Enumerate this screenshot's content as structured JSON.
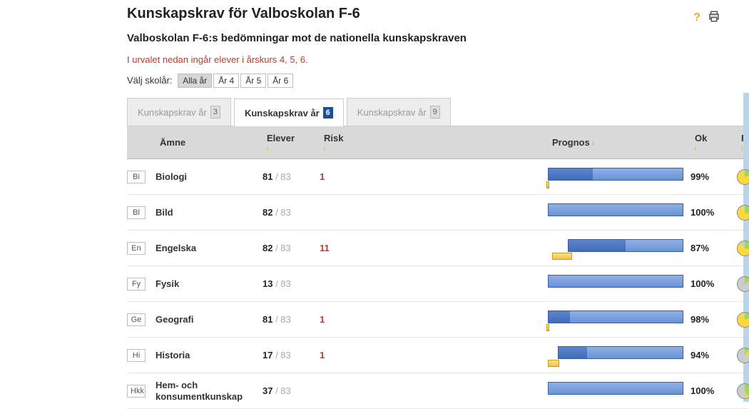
{
  "header": {
    "title": "Kunskapskrav för Valboskolan F-6",
    "subtitle": "Valboskolan F-6:s bedömningar mot de nationella kunskapskraven",
    "filter_text": "I urvalet nedan ingår elever i årskurs 4, 5, 6."
  },
  "year_select": {
    "label": "Välj skolår:",
    "options": [
      "Alla år",
      "År 4",
      "År 5",
      "År 6"
    ],
    "active_index": 0
  },
  "tabs": [
    {
      "label": "Kunskapskrav år",
      "num": "3",
      "active": false
    },
    {
      "label": "Kunskapskrav år",
      "num": "6",
      "active": true
    },
    {
      "label": "Kunskapskrav år",
      "num": "9",
      "active": false
    }
  ],
  "columns": {
    "amne": "Ämne",
    "elever": "Elever",
    "risk": "Risk",
    "prognos": "Prognos",
    "ok": "Ok",
    "farskhet": "Färskhet"
  },
  "colors": {
    "bar_light": "#8fb0e6",
    "bar_dark": "#3f6bb8",
    "risk_bar": "#f0c24a",
    "pie_green": "#a4d65e",
    "pie_yellow": "#ffd83d",
    "pie_grey": "#cccccc"
  },
  "rows": [
    {
      "code": "Bi",
      "name": "Biologi",
      "assessed": 81,
      "total": 83,
      "risk": "1",
      "prog_start": 0,
      "prog_width": 190,
      "prog_dark": 62,
      "risk_start": -2,
      "risk_width": 4,
      "ok": "99%",
      "pie_green": 20,
      "pie_yellow": 75,
      "pie_grey": 5
    },
    {
      "code": "Bl",
      "name": "Bild",
      "assessed": 82,
      "total": 83,
      "risk": "",
      "prog_start": 0,
      "prog_width": 190,
      "prog_dark": 0,
      "risk_start": 0,
      "risk_width": 0,
      "ok": "100%",
      "pie_green": 30,
      "pie_yellow": 65,
      "pie_grey": 5
    },
    {
      "code": "En",
      "name": "Engelska",
      "assessed": 82,
      "total": 83,
      "risk": "11",
      "prog_start": 28,
      "prog_width": 162,
      "prog_dark": 80,
      "risk_start": -22,
      "risk_width": 28,
      "ok": "87%",
      "pie_green": 28,
      "pie_yellow": 60,
      "pie_grey": 12
    },
    {
      "code": "Fy",
      "name": "Fysik",
      "assessed": 13,
      "total": 83,
      "risk": "",
      "prog_start": 0,
      "prog_width": 190,
      "prog_dark": 0,
      "risk_start": 0,
      "risk_width": 0,
      "ok": "100%",
      "pie_green": 15,
      "pie_yellow": 0,
      "pie_grey": 85
    },
    {
      "code": "Ge",
      "name": "Geografi",
      "assessed": 81,
      "total": 83,
      "risk": "1",
      "prog_start": 0,
      "prog_width": 190,
      "prog_dark": 30,
      "risk_start": -2,
      "risk_width": 4,
      "ok": "98%",
      "pie_green": 20,
      "pie_yellow": 75,
      "pie_grey": 5
    },
    {
      "code": "Hi",
      "name": "Historia",
      "assessed": 17,
      "total": 83,
      "risk": "1",
      "prog_start": 14,
      "prog_width": 176,
      "prog_dark": 40,
      "risk_start": -14,
      "risk_width": 16,
      "ok": "94%",
      "pie_green": 10,
      "pie_yellow": 10,
      "pie_grey": 80
    },
    {
      "code": "Hkk",
      "name": "Hem- och konsumentkunskap",
      "assessed": 37,
      "total": 83,
      "risk": "",
      "prog_start": 0,
      "prog_width": 190,
      "prog_dark": 0,
      "risk_start": 0,
      "risk_width": 0,
      "ok": "100%",
      "pie_green": 40,
      "pie_yellow": 5,
      "pie_grey": 55
    }
  ]
}
